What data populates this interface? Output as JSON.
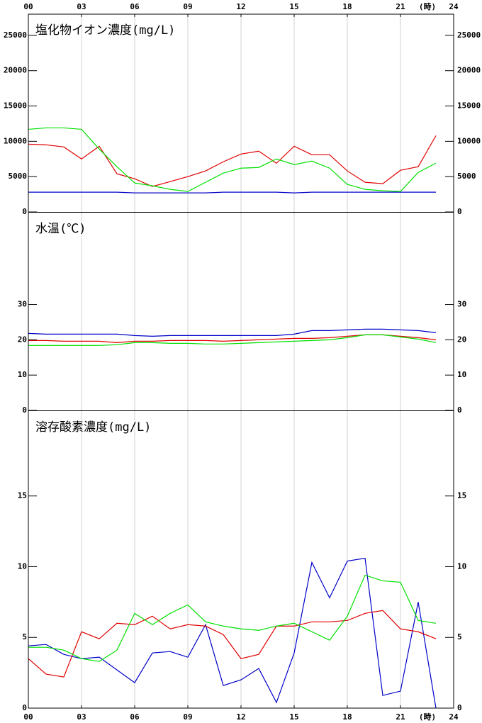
{
  "x_axis": {
    "xlim": [
      0,
      24
    ],
    "xticks": [
      {
        "value": 0,
        "label": "00"
      },
      {
        "value": 3,
        "label": "03"
      },
      {
        "value": 6,
        "label": "06"
      },
      {
        "value": 9,
        "label": "09"
      },
      12,
      15,
      18,
      21,
      24
    ],
    "x_unit": "(時)"
  },
  "chart_data": [
    {
      "type": "line",
      "title": "塩化物イオン濃度(mg/L)",
      "x": [
        0,
        1,
        2,
        3,
        4,
        5,
        6,
        7,
        8,
        9,
        10,
        11,
        12,
        13,
        14,
        15,
        16,
        17,
        18,
        19,
        20,
        21,
        22,
        23
      ],
      "ylim": [
        0,
        28000
      ],
      "yticks": [
        0,
        5000,
        10000,
        15000,
        20000,
        25000
      ],
      "series": [
        {
          "color": "#0000c8",
          "values": [
            2800,
            2800,
            2800,
            2800,
            2800,
            2800,
            2700,
            2700,
            2700,
            2700,
            2700,
            2800,
            2800,
            2800,
            2800,
            2700,
            2800,
            2800,
            2800,
            2800,
            2800,
            2800,
            2800,
            2800
          ]
        },
        {
          "color": "#e00000",
          "values": [
            9600,
            9500,
            9200,
            7500,
            9300,
            5400,
            4700,
            3600,
            4300,
            5000,
            5800,
            7100,
            8200,
            8600,
            6900,
            9300,
            8100,
            8100,
            5800,
            4200,
            4000,
            5900,
            6400,
            10800
          ]
        },
        {
          "color": "#00e000",
          "values": [
            11700,
            11900,
            11900,
            11700,
            8900,
            6400,
            4100,
            3700,
            3200,
            2900,
            4200,
            5500,
            6200,
            6300,
            7500,
            6700,
            7200,
            6200,
            3900,
            3200,
            3000,
            2900,
            5600,
            6900
          ]
        }
      ]
    },
    {
      "type": "line",
      "title": "水温(℃)",
      "x": [
        0,
        1,
        2,
        3,
        4,
        5,
        6,
        7,
        8,
        9,
        10,
        11,
        12,
        13,
        14,
        15,
        16,
        17,
        18,
        19,
        20,
        21,
        22,
        23
      ],
      "ylim": [
        0,
        56
      ],
      "yticks": [
        0,
        10,
        20,
        30
      ],
      "series": [
        {
          "color": "#0000c8",
          "values": [
            21.8,
            21.6,
            21.6,
            21.6,
            21.6,
            21.6,
            21.2,
            21.0,
            21.2,
            21.2,
            21.2,
            21.2,
            21.2,
            21.2,
            21.2,
            21.6,
            22.6,
            22.6,
            22.8,
            23.0,
            23.0,
            22.8,
            22.6,
            22.0
          ]
        },
        {
          "color": "#e00000",
          "values": [
            19.8,
            19.8,
            19.6,
            19.6,
            19.6,
            19.2,
            19.6,
            19.6,
            19.8,
            19.8,
            19.8,
            19.6,
            19.8,
            20.0,
            20.2,
            20.4,
            20.4,
            20.6,
            21.0,
            21.4,
            21.4,
            21.0,
            20.6,
            20.0
          ]
        },
        {
          "color": "#00e000",
          "values": [
            18.4,
            18.4,
            18.4,
            18.4,
            18.4,
            18.6,
            19.2,
            19.2,
            19.0,
            19.0,
            18.8,
            18.8,
            19.0,
            19.2,
            19.4,
            19.6,
            19.8,
            20.0,
            20.6,
            21.4,
            21.4,
            20.8,
            20.2,
            19.2
          ]
        }
      ]
    },
    {
      "type": "line",
      "title": "溶存酸素濃度(mg/L)",
      "x": [
        0,
        1,
        2,
        3,
        4,
        5,
        6,
        7,
        8,
        9,
        10,
        11,
        12,
        13,
        14,
        15,
        16,
        17,
        18,
        19,
        20,
        21,
        22,
        23
      ],
      "ylim": [
        0,
        21
      ],
      "yticks": [
        0,
        5,
        10,
        15
      ],
      "series": [
        {
          "color": "#0000c8",
          "values": [
            4.4,
            4.5,
            3.8,
            3.5,
            3.6,
            2.7,
            1.8,
            3.9,
            4.0,
            3.6,
            5.9,
            1.6,
            2.0,
            2.8,
            0.4,
            3.9,
            10.3,
            7.8,
            10.4,
            10.6,
            0.9,
            1.2,
            7.5,
            0
          ]
        },
        {
          "color": "#e00000",
          "values": [
            3.5,
            2.4,
            2.2,
            5.4,
            4.9,
            6.0,
            5.9,
            6.5,
            5.6,
            5.9,
            5.8,
            5.2,
            3.5,
            3.8,
            5.8,
            5.8,
            6.1,
            6.1,
            6.2,
            6.7,
            6.9,
            5.6,
            5.4,
            4.9
          ]
        },
        {
          "color": "#00e000",
          "values": [
            4.3,
            4.3,
            4.1,
            3.5,
            3.3,
            4.1,
            6.7,
            5.9,
            6.7,
            7.3,
            6.1,
            5.8,
            5.6,
            5.5,
            5.8,
            6.0,
            5.4,
            4.8,
            6.5,
            9.4,
            9.0,
            8.9,
            6.2,
            6.0
          ]
        }
      ]
    }
  ]
}
